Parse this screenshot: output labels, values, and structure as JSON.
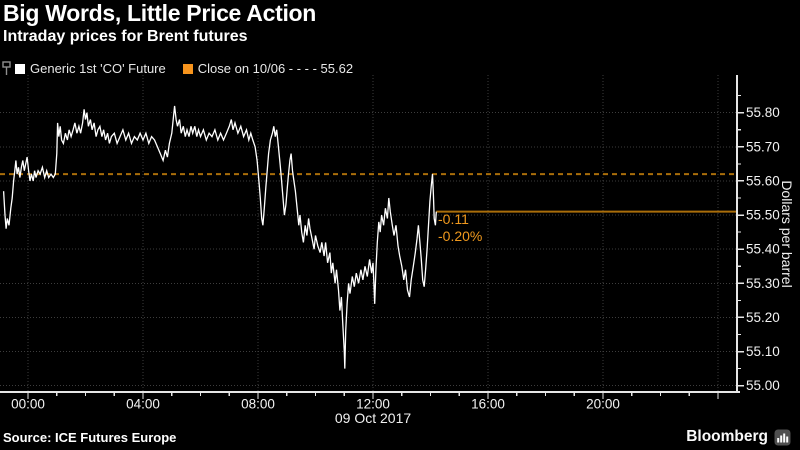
{
  "header": {
    "title": "Big Words, Little Price Action",
    "subtitle": "Intraday prices for Brent futures"
  },
  "legend": {
    "series": [
      {
        "label": "Generic 1st 'CO' Future",
        "swatch_color": "#ffffff"
      },
      {
        "label": "Close on 10/06 - - - -  55.62",
        "swatch_color": "#f7941d"
      }
    ]
  },
  "footer": {
    "source": "Source: ICE Futures Europe",
    "brand": "Bloomberg"
  },
  "colors": {
    "background": "#000000",
    "price_line": "#ffffff",
    "reference_orange": "#aa6e0a",
    "accent_orange": "#f7941d",
    "annotation_orange": "#f0991e",
    "grid": "#3d3d3d",
    "axis": "#e6e6e6",
    "tick_label": "#f2f2f2"
  },
  "chart_data": {
    "type": "line",
    "title": "Big Words, Little Price Action",
    "subtitle": "Intraday prices for Brent futures",
    "ylabel": "Dollars per barrel",
    "x_date_label": "09 Oct 2017",
    "grid": true,
    "legend_position": "top-left",
    "ylim": [
      54.99,
      55.91
    ],
    "xlim_hours": [
      -0.9,
      24.7
    ],
    "y_ticks": [
      {
        "value": 55.0,
        "label": "55.00"
      },
      {
        "value": 55.1,
        "label": "55.10"
      },
      {
        "value": 55.2,
        "label": "55.20"
      },
      {
        "value": 55.3,
        "label": "55.30"
      },
      {
        "value": 55.4,
        "label": "55.40"
      },
      {
        "value": 55.5,
        "label": "55.50"
      },
      {
        "value": 55.6,
        "label": "55.60"
      },
      {
        "value": 55.7,
        "label": "55.70"
      },
      {
        "value": 55.8,
        "label": "55.80"
      }
    ],
    "x_ticks": [
      {
        "hour": 0,
        "label": "00:00"
      },
      {
        "hour": 4,
        "label": "04:00"
      },
      {
        "hour": 8,
        "label": "08:00"
      },
      {
        "hour": 12,
        "label": "12:00"
      },
      {
        "hour": 16,
        "label": "16:00"
      },
      {
        "hour": 20,
        "label": "20:00"
      }
    ],
    "x_major_hours": [
      0,
      4,
      8,
      12,
      16,
      20,
      24
    ],
    "reference_lines": [
      {
        "name": "close-previous",
        "label": "Close on 10/06",
        "value": 55.62,
        "style": "dashed"
      },
      {
        "name": "last-price",
        "value": 55.51,
        "style": "solid",
        "from_hour": 14.2
      }
    ],
    "annotation": {
      "net_change": "-0.11",
      "pct_change": "-0.20%"
    },
    "series": [
      {
        "name": "Generic 1st 'CO' Future",
        "color": "#ffffff",
        "points": [
          [
            -0.85,
            55.57
          ],
          [
            -0.8,
            55.5
          ],
          [
            -0.76,
            55.46
          ],
          [
            -0.72,
            55.49
          ],
          [
            -0.66,
            55.47
          ],
          [
            -0.6,
            55.52
          ],
          [
            -0.55,
            55.55
          ],
          [
            -0.5,
            55.6
          ],
          [
            -0.46,
            55.63
          ],
          [
            -0.42,
            55.66
          ],
          [
            -0.38,
            55.62
          ],
          [
            -0.33,
            55.64
          ],
          [
            -0.28,
            55.61
          ],
          [
            -0.23,
            55.64
          ],
          [
            -0.18,
            55.66
          ],
          [
            -0.13,
            55.63
          ],
          [
            -0.08,
            55.65
          ],
          [
            -0.03,
            55.67
          ],
          [
            0.02,
            55.63
          ],
          [
            0.07,
            55.6
          ],
          [
            0.12,
            55.62
          ],
          [
            0.18,
            55.6
          ],
          [
            0.23,
            55.63
          ],
          [
            0.28,
            55.61
          ],
          [
            0.35,
            55.63
          ],
          [
            0.42,
            55.62
          ],
          [
            0.5,
            55.64
          ],
          [
            0.58,
            55.61
          ],
          [
            0.65,
            55.63
          ],
          [
            0.72,
            55.61
          ],
          [
            0.8,
            55.62
          ],
          [
            0.88,
            55.61
          ],
          [
            0.95,
            55.62
          ],
          [
            1.0,
            55.68
          ],
          [
            1.03,
            55.77
          ],
          [
            1.07,
            55.73
          ],
          [
            1.12,
            55.76
          ],
          [
            1.17,
            55.72
          ],
          [
            1.23,
            55.71
          ],
          [
            1.3,
            55.74
          ],
          [
            1.37,
            55.72
          ],
          [
            1.43,
            55.75
          ],
          [
            1.5,
            55.73
          ],
          [
            1.57,
            55.75
          ],
          [
            1.63,
            55.77
          ],
          [
            1.7,
            55.74
          ],
          [
            1.77,
            55.76
          ],
          [
            1.83,
            55.74
          ],
          [
            1.9,
            55.77
          ],
          [
            1.95,
            55.81
          ],
          [
            2.0,
            55.78
          ],
          [
            2.05,
            55.8
          ],
          [
            2.1,
            55.76
          ],
          [
            2.17,
            55.78
          ],
          [
            2.23,
            55.75
          ],
          [
            2.3,
            55.77
          ],
          [
            2.37,
            55.73
          ],
          [
            2.43,
            55.75
          ],
          [
            2.5,
            55.76
          ],
          [
            2.57,
            55.73
          ],
          [
            2.63,
            55.75
          ],
          [
            2.7,
            55.72
          ],
          [
            2.77,
            55.74
          ],
          [
            2.83,
            55.71
          ],
          [
            2.9,
            55.73
          ],
          [
            3.0,
            55.74
          ],
          [
            3.1,
            55.71
          ],
          [
            3.2,
            55.73
          ],
          [
            3.3,
            55.75
          ],
          [
            3.4,
            55.72
          ],
          [
            3.5,
            55.74
          ],
          [
            3.6,
            55.71
          ],
          [
            3.7,
            55.73
          ],
          [
            3.8,
            55.72
          ],
          [
            3.9,
            55.74
          ],
          [
            4.0,
            55.72
          ],
          [
            4.1,
            55.74
          ],
          [
            4.2,
            55.71
          ],
          [
            4.3,
            55.73
          ],
          [
            4.4,
            55.72
          ],
          [
            4.5,
            55.7
          ],
          [
            4.6,
            55.68
          ],
          [
            4.7,
            55.66
          ],
          [
            4.78,
            55.69
          ],
          [
            4.85,
            55.67
          ],
          [
            4.92,
            55.71
          ],
          [
            5.0,
            55.74
          ],
          [
            5.05,
            55.78
          ],
          [
            5.1,
            55.82
          ],
          [
            5.15,
            55.78
          ],
          [
            5.2,
            55.76
          ],
          [
            5.27,
            55.78
          ],
          [
            5.33,
            55.74
          ],
          [
            5.4,
            55.76
          ],
          [
            5.47,
            55.73
          ],
          [
            5.53,
            55.75
          ],
          [
            5.6,
            55.73
          ],
          [
            5.67,
            55.76
          ],
          [
            5.73,
            55.74
          ],
          [
            5.8,
            55.76
          ],
          [
            5.87,
            55.73
          ],
          [
            5.93,
            55.75
          ],
          [
            6.0,
            55.73
          ],
          [
            6.1,
            55.75
          ],
          [
            6.2,
            55.72
          ],
          [
            6.3,
            55.74
          ],
          [
            6.4,
            55.73
          ],
          [
            6.5,
            55.75
          ],
          [
            6.6,
            55.72
          ],
          [
            6.7,
            55.74
          ],
          [
            6.8,
            55.72
          ],
          [
            6.9,
            55.74
          ],
          [
            7.0,
            55.76
          ],
          [
            7.07,
            55.78
          ],
          [
            7.13,
            55.75
          ],
          [
            7.2,
            55.77
          ],
          [
            7.3,
            55.74
          ],
          [
            7.4,
            55.76
          ],
          [
            7.5,
            55.73
          ],
          [
            7.6,
            55.75
          ],
          [
            7.68,
            55.72
          ],
          [
            7.75,
            55.74
          ],
          [
            7.82,
            55.72
          ],
          [
            7.9,
            55.7
          ],
          [
            7.97,
            55.66
          ],
          [
            8.03,
            55.6
          ],
          [
            8.08,
            55.55
          ],
          [
            8.13,
            55.49
          ],
          [
            8.17,
            55.47
          ],
          [
            8.22,
            55.52
          ],
          [
            8.27,
            55.58
          ],
          [
            8.32,
            55.63
          ],
          [
            8.37,
            55.68
          ],
          [
            8.43,
            55.72
          ],
          [
            8.5,
            55.74
          ],
          [
            8.55,
            55.76
          ],
          [
            8.6,
            55.73
          ],
          [
            8.65,
            55.75
          ],
          [
            8.7,
            55.71
          ],
          [
            8.77,
            55.65
          ],
          [
            8.82,
            55.6
          ],
          [
            8.87,
            55.55
          ],
          [
            8.92,
            55.5
          ],
          [
            8.97,
            55.53
          ],
          [
            9.02,
            55.58
          ],
          [
            9.06,
            55.62
          ],
          [
            9.11,
            55.66
          ],
          [
            9.15,
            55.68
          ],
          [
            9.2,
            55.63
          ],
          [
            9.25,
            55.6
          ],
          [
            9.3,
            55.57
          ],
          [
            9.36,
            55.52
          ],
          [
            9.42,
            55.47
          ],
          [
            9.46,
            55.5
          ],
          [
            9.52,
            55.45
          ],
          [
            9.58,
            55.42
          ],
          [
            9.64,
            55.47
          ],
          [
            9.7,
            55.44
          ],
          [
            9.76,
            55.49
          ],
          [
            9.81,
            55.46
          ],
          [
            9.88,
            55.43
          ],
          [
            9.95,
            55.4
          ],
          [
            10.0,
            55.44
          ],
          [
            10.08,
            55.41
          ],
          [
            10.16,
            55.39
          ],
          [
            10.22,
            55.42
          ],
          [
            10.3,
            55.38
          ],
          [
            10.35,
            55.42
          ],
          [
            10.42,
            55.36
          ],
          [
            10.5,
            55.39
          ],
          [
            10.55,
            55.33
          ],
          [
            10.6,
            55.36
          ],
          [
            10.68,
            55.3
          ],
          [
            10.73,
            55.34
          ],
          [
            10.8,
            55.28
          ],
          [
            10.85,
            55.22
          ],
          [
            10.9,
            55.26
          ],
          [
            10.95,
            55.18
          ],
          [
            11.0,
            55.1
          ],
          [
            11.02,
            55.05
          ],
          [
            11.05,
            55.16
          ],
          [
            11.1,
            55.24
          ],
          [
            11.15,
            55.3
          ],
          [
            11.2,
            55.27
          ],
          [
            11.28,
            55.32
          ],
          [
            11.35,
            55.29
          ],
          [
            11.42,
            55.33
          ],
          [
            11.5,
            55.3
          ],
          [
            11.58,
            55.34
          ],
          [
            11.65,
            55.31
          ],
          [
            11.72,
            55.35
          ],
          [
            11.8,
            55.32
          ],
          [
            11.88,
            55.37
          ],
          [
            11.95,
            55.33
          ],
          [
            12.0,
            55.36
          ],
          [
            12.03,
            55.3
          ],
          [
            12.06,
            55.24
          ],
          [
            12.1,
            55.34
          ],
          [
            12.15,
            55.42
          ],
          [
            12.2,
            55.48
          ],
          [
            12.25,
            55.45
          ],
          [
            12.3,
            55.5
          ],
          [
            12.37,
            55.47
          ],
          [
            12.43,
            55.52
          ],
          [
            12.5,
            55.49
          ],
          [
            12.55,
            55.55
          ],
          [
            12.6,
            55.51
          ],
          [
            12.67,
            55.47
          ],
          [
            12.73,
            55.44
          ],
          [
            12.8,
            55.47
          ],
          [
            12.87,
            55.41
          ],
          [
            12.93,
            55.38
          ],
          [
            13.0,
            55.35
          ],
          [
            13.07,
            55.31
          ],
          [
            13.13,
            55.34
          ],
          [
            13.2,
            55.28
          ],
          [
            13.27,
            55.26
          ],
          [
            13.33,
            55.31
          ],
          [
            13.4,
            55.35
          ],
          [
            13.47,
            55.39
          ],
          [
            13.53,
            55.43
          ],
          [
            13.58,
            55.47
          ],
          [
            13.63,
            55.42
          ],
          [
            13.68,
            55.37
          ],
          [
            13.73,
            55.31
          ],
          [
            13.78,
            55.29
          ],
          [
            13.83,
            55.34
          ],
          [
            13.88,
            55.4
          ],
          [
            13.93,
            55.47
          ],
          [
            13.98,
            55.54
          ],
          [
            14.03,
            55.59
          ],
          [
            14.07,
            55.62
          ],
          [
            14.1,
            55.56
          ],
          [
            14.13,
            55.49
          ],
          [
            14.17,
            55.47
          ],
          [
            14.2,
            55.51
          ]
        ]
      }
    ]
  }
}
